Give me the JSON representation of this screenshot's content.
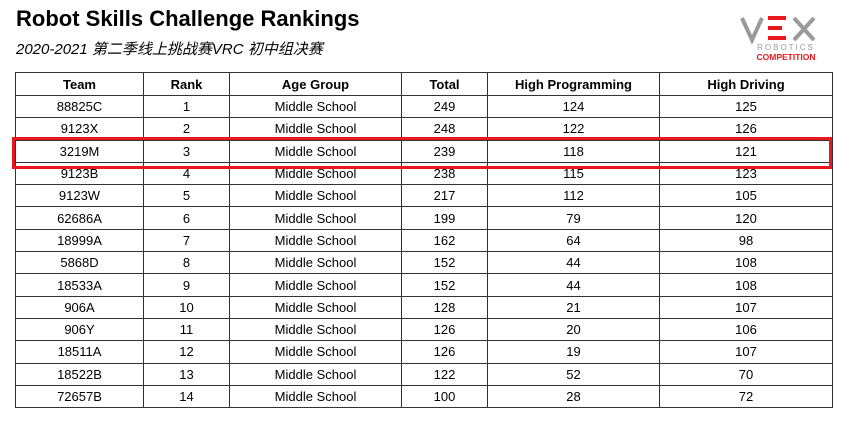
{
  "header": {
    "title": "Robot Skills Challenge Rankings",
    "subtitle": "2020-2021 第二季线上挑战赛VRC 初中组决赛"
  },
  "logo": {
    "brand": "VEX",
    "line1": "ROBOTICS",
    "line2": "COMPETITION",
    "accent_color": "#e8181f",
    "grey_color": "#9a9a9a"
  },
  "table": {
    "columns": [
      "Team",
      "Rank",
      "Age Group",
      "Total",
      "High Programming",
      "High Driving"
    ],
    "rows": [
      [
        "88825C",
        "1",
        "Middle School",
        "249",
        "124",
        "125"
      ],
      [
        "9123X",
        "2",
        "Middle School",
        "248",
        "122",
        "126"
      ],
      [
        "3219M",
        "3",
        "Middle School",
        "239",
        "118",
        "121"
      ],
      [
        "9123B",
        "4",
        "Middle School",
        "238",
        "115",
        "123"
      ],
      [
        "9123W",
        "5",
        "Middle School",
        "217",
        "112",
        "105"
      ],
      [
        "62686A",
        "6",
        "Middle School",
        "199",
        "79",
        "120"
      ],
      [
        "18999A",
        "7",
        "Middle School",
        "162",
        "64",
        "98"
      ],
      [
        "5868D",
        "8",
        "Middle School",
        "152",
        "44",
        "108"
      ],
      [
        "18533A",
        "9",
        "Middle School",
        "152",
        "44",
        "108"
      ],
      [
        "906A",
        "10",
        "Middle School",
        "128",
        "21",
        "107"
      ],
      [
        "906Y",
        "11",
        "Middle School",
        "126",
        "20",
        "106"
      ],
      [
        "18511A",
        "12",
        "Middle School",
        "126",
        "19",
        "107"
      ],
      [
        "18522B",
        "13",
        "Middle School",
        "122",
        "52",
        "70"
      ],
      [
        "72657B",
        "14",
        "Middle School",
        "100",
        "28",
        "72"
      ]
    ],
    "highlighted_team": "3219M",
    "highlight_color": "#e8181f"
  }
}
